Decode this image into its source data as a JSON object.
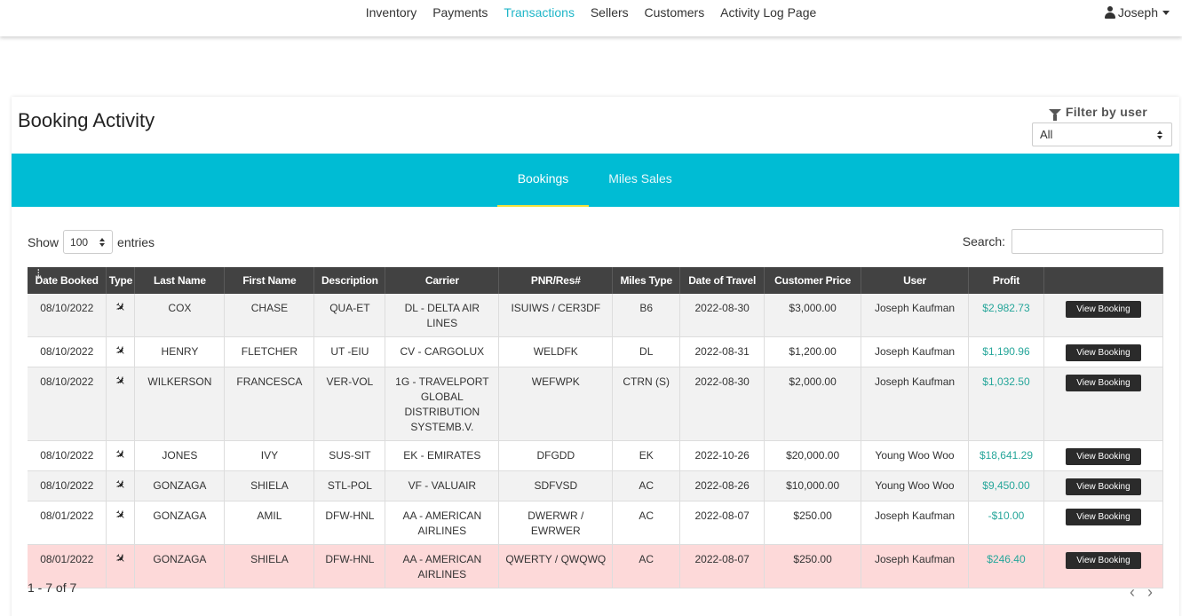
{
  "nav": {
    "links": [
      "Inventory",
      "Payments",
      "Transactions",
      "Sellers",
      "Customers",
      "Activity Log Page"
    ],
    "active": "Transactions",
    "user": "Joseph"
  },
  "card": {
    "title": "Booking Activity",
    "filter_label": "Filter by user",
    "filter_value": "All",
    "tabs": [
      "Bookings",
      "Miles Sales"
    ],
    "show_label": "Show",
    "entries_value": "100",
    "entries_label": "entries",
    "search_label": "Search:",
    "info": "1 - 7 of 7",
    "prev": "‹",
    "next": "›"
  },
  "colors": {
    "accent": "#00bcd4",
    "profit": "#26a69a",
    "highlight_row": "#fdd9d9",
    "header": "#424242"
  },
  "table": {
    "columns": [
      "Date Booked",
      "Type",
      "Last Name",
      "First Name",
      "Description",
      "Carrier",
      "PNR/Res#",
      "Miles Type",
      "Date of Travel",
      "Customer Price",
      "User",
      "Profit",
      ""
    ],
    "button_label": "View Booking",
    "rows": [
      {
        "date": "08/10/2022",
        "type": "plane-icon",
        "last": "COX",
        "first": "CHASE",
        "desc": "QUA-ET",
        "carrier": "DL - DELTA AIR LINES",
        "pnr": "ISUIWS / CER3DF",
        "miles": "B6",
        "travel": "2022-08-30",
        "price": "$3,000.00",
        "user": "Joseph Kaufman",
        "profit": "$2,982.73"
      },
      {
        "date": "08/10/2022",
        "type": "plane-icon",
        "last": "HENRY",
        "first": "FLETCHER",
        "desc": "UT -EIU",
        "carrier": "CV - CARGOLUX",
        "pnr": "WELDFK",
        "miles": "DL",
        "travel": "2022-08-31",
        "price": "$1,200.00",
        "user": "Joseph Kaufman",
        "profit": "$1,190.96"
      },
      {
        "date": "08/10/2022",
        "type": "plane-icon",
        "last": "WILKERSON",
        "first": "FRANCESCA",
        "desc": "VER-VOL",
        "carrier": "1G - TRAVELPORT GLOBAL DISTRIBUTION SYSTEMB.V.",
        "pnr": "WEFWPK",
        "miles": "CTRN (S)",
        "travel": "2022-08-30",
        "price": "$2,000.00",
        "user": "Joseph Kaufman",
        "profit": "$1,032.50"
      },
      {
        "date": "08/10/2022",
        "type": "plane-icon",
        "last": "JONES",
        "first": "IVY",
        "desc": "SUS-SIT",
        "carrier": "EK - EMIRATES",
        "pnr": "DFGDD",
        "miles": "EK",
        "travel": "2022-10-26",
        "price": "$20,000.00",
        "user": "Young Woo Woo",
        "profit": "$18,641.29"
      },
      {
        "date": "08/10/2022",
        "type": "plane-icon",
        "last": "GONZAGA",
        "first": "SHIELA",
        "desc": "STL-POL",
        "carrier": "VF - VALUAIR",
        "pnr": "SDFVSD",
        "miles": "AC",
        "travel": "2022-08-26",
        "price": "$10,000.00",
        "user": "Young Woo Woo",
        "profit": "$9,450.00"
      },
      {
        "date": "08/01/2022",
        "type": "plane-icon",
        "last": "GONZAGA",
        "first": "AMIL",
        "desc": "DFW-HNL",
        "carrier": "AA - AMERICAN AIRLINES",
        "pnr": "DWERWR / EWRWER",
        "miles": "AC",
        "travel": "2022-08-07",
        "price": "$250.00",
        "user": "Joseph Kaufman",
        "profit": "-$10.00"
      },
      {
        "date": "08/01/2022",
        "type": "plane-icon",
        "last": "GONZAGA",
        "first": "SHIELA",
        "desc": "DFW-HNL",
        "carrier": "AA - AMERICAN AIRLINES",
        "pnr": "QWERTY / QWQWQ",
        "miles": "AC",
        "travel": "2022-08-07",
        "price": "$250.00",
        "user": "Joseph Kaufman",
        "profit": "$246.40"
      }
    ]
  }
}
